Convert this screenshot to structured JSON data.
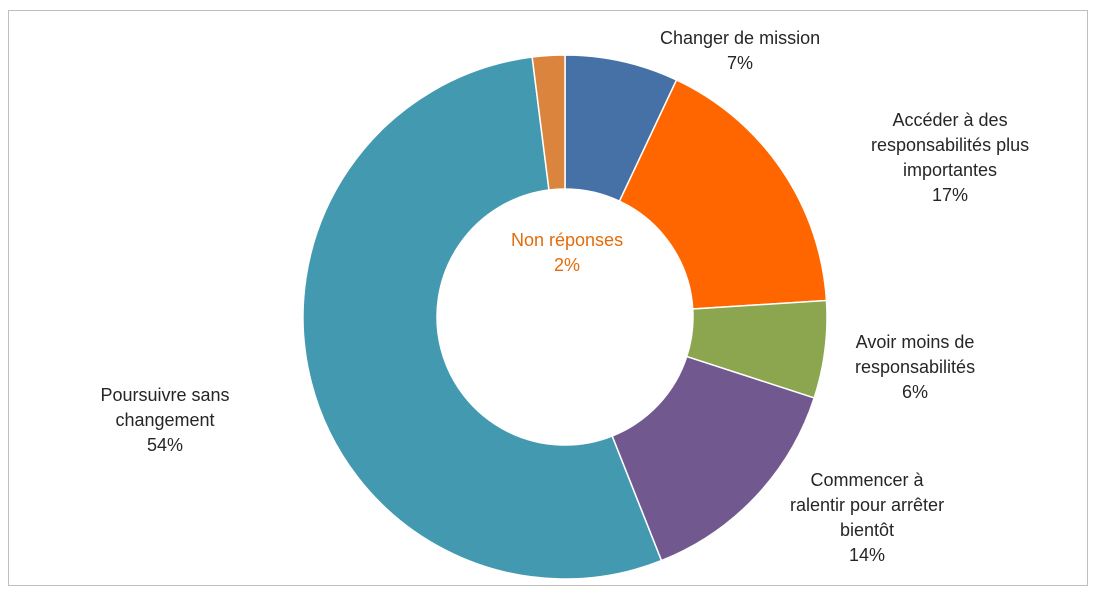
{
  "chart_data": {
    "type": "pie",
    "donut": true,
    "slices": [
      {
        "label_lines": [
          "Changer de mission"
        ],
        "value": 7,
        "value_label": "7%",
        "color": "#4571a6"
      },
      {
        "label_lines": [
          "Accéder à des",
          "responsabilités plus",
          "importantes"
        ],
        "value": 17,
        "value_label": "17%",
        "color": "#ff6600"
      },
      {
        "label_lines": [
          "Avoir moins de",
          "responsabilités"
        ],
        "value": 6,
        "value_label": "6%",
        "color": "#8ba64e"
      },
      {
        "label_lines": [
          "Commencer à",
          "ralentir pour arrêter",
          "bientôt"
        ],
        "value": 14,
        "value_label": "14%",
        "color": "#71588f"
      },
      {
        "label_lines": [
          "Poursuivre sans",
          "changement"
        ],
        "value": 54,
        "value_label": "54%",
        "color": "#4299b0"
      },
      {
        "label_lines": [
          "Non réponses"
        ],
        "value": 2,
        "value_label": "2%",
        "color": "#db843d"
      }
    ],
    "non_response_label_color": "#e36c09",
    "text_color": "#262626"
  }
}
